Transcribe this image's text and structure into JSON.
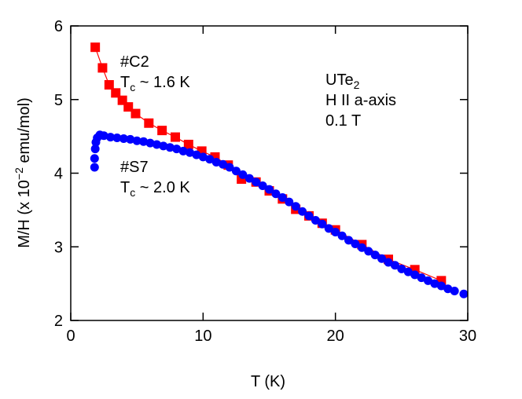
{
  "chart_data": {
    "type": "scatter",
    "xlabel": "T (K)",
    "ylabel": {
      "base": "M/H (x 10",
      "exp": "−2",
      "unit": " emu/mol)"
    },
    "xlim": [
      0,
      30
    ],
    "ylim": [
      2,
      6
    ],
    "xticks": [
      "0",
      "10",
      "20",
      "30"
    ],
    "yticks": [
      "2",
      "3",
      "4",
      "5",
      "6"
    ],
    "grid": false,
    "annotations": {
      "c2_name": "#C2",
      "c2_tc": {
        "t": "T",
        "sub": "c",
        "rest": " ~ 1.6 K"
      },
      "s7_name": "#S7",
      "s7_tc": {
        "t": "T",
        "sub": "c",
        "rest": " ~ 2.0 K"
      },
      "material": {
        "base": "UTe",
        "sub": "2"
      },
      "field_dir": "H II a-axis",
      "field": "0.1 T"
    },
    "series": [
      {
        "name": "#C2",
        "color": "#ff0000",
        "marker": "square",
        "line": true,
        "x": [
          1.85,
          2.4,
          2.9,
          3.4,
          3.9,
          4.35,
          4.9,
          5.9,
          6.9,
          7.9,
          8.9,
          9.9,
          10.9,
          11.9,
          12.9,
          14.0,
          15.0,
          16.0,
          17.0,
          18.0,
          19.0,
          20.0,
          22.0,
          24.0,
          26.0,
          28.0
        ],
        "y": [
          5.71,
          5.43,
          5.2,
          5.09,
          4.99,
          4.9,
          4.81,
          4.68,
          4.58,
          4.49,
          4.39,
          4.3,
          4.22,
          4.11,
          3.92,
          3.88,
          3.76,
          3.65,
          3.51,
          3.42,
          3.32,
          3.23,
          3.03,
          2.83,
          2.69,
          2.54
        ]
      },
      {
        "name": "#S7",
        "color": "#0000ff",
        "marker": "circle",
        "line": false,
        "x": [
          1.8,
          1.8,
          1.85,
          1.9,
          2.0,
          2.2,
          2.5,
          3,
          3.5,
          4,
          4.5,
          5,
          5.5,
          6,
          6.5,
          7,
          7.5,
          8,
          8.5,
          9,
          9.5,
          10,
          10.5,
          11,
          11.5,
          12,
          12.5,
          13,
          13.5,
          14,
          14.5,
          15,
          15.5,
          16,
          16.5,
          17,
          17.5,
          18,
          18.5,
          19,
          19.5,
          20,
          20.5,
          21,
          21.5,
          22,
          22.5,
          23,
          23.5,
          24,
          24.5,
          25,
          25.5,
          26,
          26.5,
          27,
          27.5,
          28,
          28.5,
          29,
          29.7
        ],
        "y": [
          4.08,
          4.2,
          4.33,
          4.42,
          4.48,
          4.52,
          4.51,
          4.49,
          4.48,
          4.47,
          4.46,
          4.44,
          4.43,
          4.41,
          4.39,
          4.37,
          4.35,
          4.33,
          4.3,
          4.28,
          4.25,
          4.22,
          4.19,
          4.15,
          4.12,
          4.08,
          4.03,
          3.98,
          3.93,
          3.88,
          3.83,
          3.78,
          3.72,
          3.67,
          3.61,
          3.55,
          3.48,
          3.42,
          3.36,
          3.31,
          3.25,
          3.2,
          3.15,
          3.09,
          3.04,
          2.99,
          2.94,
          2.89,
          2.84,
          2.79,
          2.75,
          2.7,
          2.66,
          2.62,
          2.58,
          2.54,
          2.5,
          2.47,
          2.43,
          2.4,
          2.36
        ]
      }
    ]
  }
}
